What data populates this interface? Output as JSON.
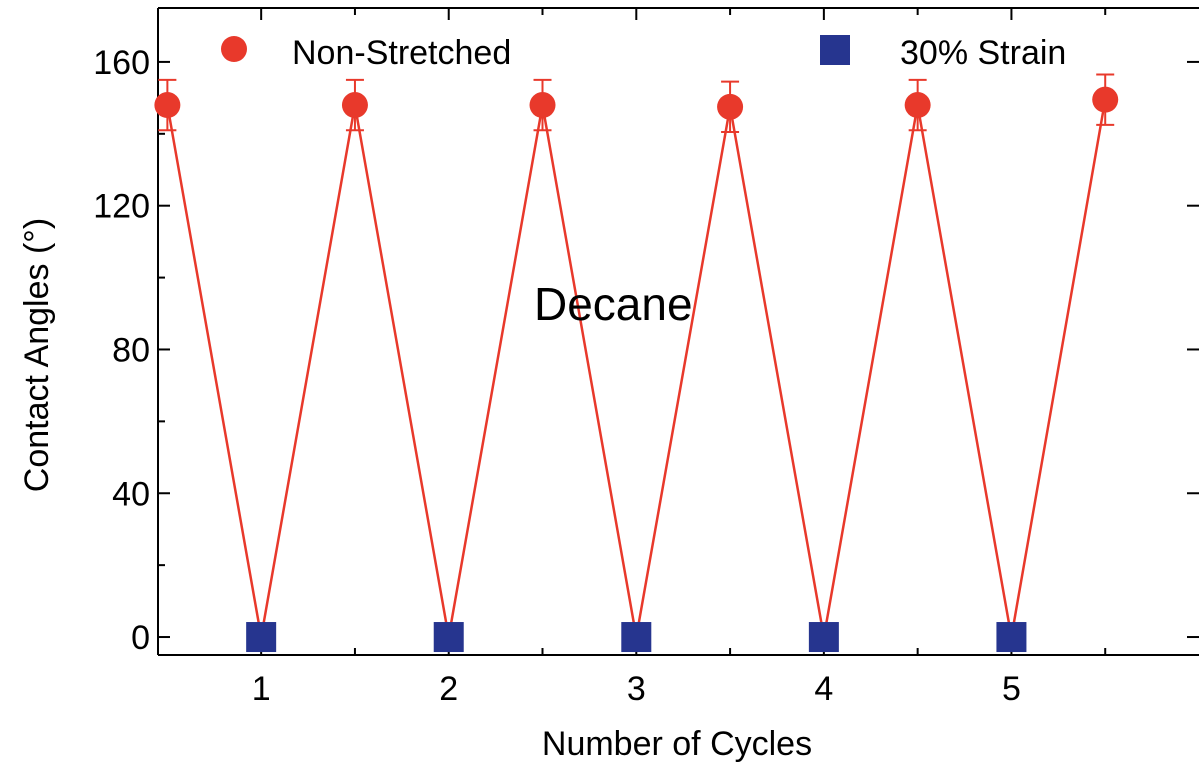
{
  "chart_data": {
    "type": "line",
    "title": "",
    "xlabel": "Number of Cycles",
    "ylabel": "Contact Angles (°)",
    "xlim": [
      0.45,
      6.0
    ],
    "ylim": [
      -5,
      175
    ],
    "xticks": [
      1,
      2,
      3,
      4,
      5
    ],
    "xtick_labels": [
      "1",
      "2",
      "3",
      "4",
      "5"
    ],
    "yticks": [
      0,
      40,
      80,
      120,
      160
    ],
    "ytick_labels": [
      "0",
      "40",
      "80",
      "120",
      "160"
    ],
    "annotation": "Decane",
    "legend_position": "top",
    "grid": false,
    "connecting_line": {
      "color": "#e8392b",
      "x": [
        0.5,
        1,
        1.5,
        2,
        2.5,
        3,
        3.5,
        4,
        4.5,
        5,
        5.5
      ],
      "y": [
        148,
        0,
        148,
        0,
        148,
        0,
        147.5,
        0,
        148,
        0,
        149.5
      ]
    },
    "series": [
      {
        "name": "Non-Stretched",
        "marker": "circle",
        "color": "#e8392b",
        "x": [
          0.5,
          1.5,
          2.5,
          3.5,
          4.5,
          5.5
        ],
        "y": [
          148,
          148,
          148,
          147.5,
          148,
          149.5
        ],
        "error": [
          7,
          7,
          7,
          7,
          7,
          7
        ]
      },
      {
        "name": "30% Strain",
        "marker": "square",
        "color": "#26358f",
        "x": [
          1,
          2,
          3,
          4,
          5
        ],
        "y": [
          0,
          0,
          0,
          0,
          0
        ]
      }
    ]
  }
}
